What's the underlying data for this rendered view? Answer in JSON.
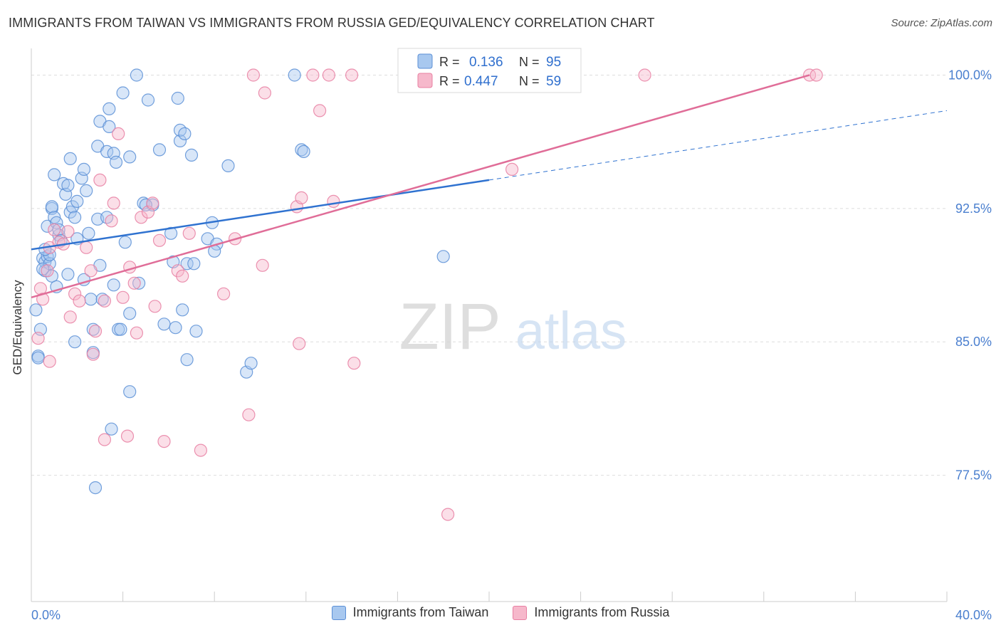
{
  "header": {
    "title": "IMMIGRANTS FROM TAIWAN VS IMMIGRANTS FROM RUSSIA GED/EQUIVALENCY CORRELATION CHART",
    "source": "Source: ZipAtlas.com"
  },
  "watermark": {
    "zip": "ZIP",
    "atlas": "atlas"
  },
  "stats": {
    "r_label": "R =",
    "n_label": "N =",
    "rows": [
      {
        "r": "0.136",
        "n": "95"
      },
      {
        "r": "0.447",
        "n": "59"
      }
    ]
  },
  "colors": {
    "taiwan_fill": "#a8c8ef",
    "taiwan_stroke": "#5b8fd6",
    "taiwan_line": "#2f72d0",
    "russia_fill": "#f6b8cb",
    "russia_stroke": "#e87fa2",
    "russia_line": "#e06d98",
    "axis_label": "#4a7fcf",
    "grid": "#dddddd"
  },
  "chart_data": {
    "type": "scatter",
    "title": "IMMIGRANTS FROM TAIWAN VS IMMIGRANTS FROM RUSSIA GED/EQUIVALENCY CORRELATION CHART",
    "xlabel": "",
    "ylabel": "GED/Equivalency",
    "xlim": [
      0,
      40
    ],
    "ylim": [
      70.4,
      101.5
    ],
    "x_tick_labels": [
      "0.0%",
      "40.0%"
    ],
    "y_ticks": [
      77.5,
      85.0,
      92.5,
      100.0
    ],
    "y_tick_labels": [
      "77.5%",
      "85.0%",
      "92.5%",
      "100.0%"
    ],
    "grid": true,
    "legend_position": "bottom-center",
    "series": [
      {
        "name": "Immigrants from Taiwan",
        "R": 0.136,
        "N": 95,
        "trend": {
          "x": [
            0,
            20
          ],
          "y": [
            90.2,
            94.1
          ]
        },
        "trend_dashed": {
          "x": [
            20,
            40
          ],
          "y": [
            94.1,
            98.0
          ]
        },
        "points": [
          [
            0.2,
            86.8
          ],
          [
            0.3,
            84.2
          ],
          [
            0.3,
            84.1
          ],
          [
            0.4,
            85.7
          ],
          [
            0.5,
            89.7
          ],
          [
            0.6,
            89.5
          ],
          [
            0.6,
            89.0
          ],
          [
            0.7,
            91.5
          ],
          [
            0.7,
            89.8
          ],
          [
            0.8,
            89.4
          ],
          [
            0.9,
            88.7
          ],
          [
            0.9,
            92.5
          ],
          [
            0.9,
            92.6
          ],
          [
            1.0,
            92.0
          ],
          [
            1.0,
            94.4
          ],
          [
            1.1,
            88.1
          ],
          [
            1.1,
            91.7
          ],
          [
            1.2,
            91.0
          ],
          [
            1.2,
            91.3
          ],
          [
            1.3,
            90.7
          ],
          [
            1.4,
            93.9
          ],
          [
            1.5,
            93.3
          ],
          [
            1.6,
            93.8
          ],
          [
            1.7,
            95.3
          ],
          [
            1.7,
            92.3
          ],
          [
            1.8,
            92.6
          ],
          [
            1.9,
            92.0
          ],
          [
            2.0,
            90.8
          ],
          [
            2.0,
            92.9
          ],
          [
            2.2,
            94.2
          ],
          [
            2.3,
            94.7
          ],
          [
            2.4,
            93.5
          ],
          [
            2.5,
            91.1
          ],
          [
            2.6,
            87.4
          ],
          [
            2.7,
            85.7
          ],
          [
            2.7,
            84.4
          ],
          [
            2.9,
            96.0
          ],
          [
            2.9,
            91.9
          ],
          [
            3.0,
            97.4
          ],
          [
            3.0,
            89.3
          ],
          [
            3.1,
            87.4
          ],
          [
            3.3,
            95.7
          ],
          [
            3.3,
            92.0
          ],
          [
            3.4,
            98.1
          ],
          [
            3.4,
            97.1
          ],
          [
            3.5,
            80.1
          ],
          [
            3.6,
            88.2
          ],
          [
            3.6,
            95.6
          ],
          [
            3.7,
            95.1
          ],
          [
            3.8,
            85.7
          ],
          [
            4.0,
            99.0
          ],
          [
            4.1,
            90.6
          ],
          [
            4.3,
            95.4
          ],
          [
            4.3,
            82.2
          ],
          [
            4.3,
            86.6
          ],
          [
            4.7,
            88.3
          ],
          [
            4.9,
            92.8
          ],
          [
            5.1,
            98.6
          ],
          [
            5.3,
            92.7
          ],
          [
            5.6,
            95.8
          ],
          [
            5.8,
            86.0
          ],
          [
            6.1,
            91.1
          ],
          [
            6.3,
            85.8
          ],
          [
            6.4,
            98.7
          ],
          [
            6.5,
            96.3
          ],
          [
            6.5,
            96.9
          ],
          [
            6.6,
            86.8
          ],
          [
            6.7,
            96.7
          ],
          [
            6.8,
            89.4
          ],
          [
            6.8,
            84.0
          ],
          [
            7.0,
            95.5
          ],
          [
            7.1,
            89.4
          ],
          [
            7.2,
            85.6
          ],
          [
            7.9,
            91.7
          ],
          [
            7.7,
            90.8
          ],
          [
            8.1,
            90.5
          ],
          [
            8.6,
            94.9
          ],
          [
            9.4,
            83.3
          ],
          [
            9.6,
            83.8
          ],
          [
            11.8,
            95.8
          ],
          [
            11.9,
            95.7
          ],
          [
            18.0,
            89.8
          ],
          [
            4.6,
            100.0
          ],
          [
            11.5,
            100.0
          ],
          [
            2.8,
            76.8
          ],
          [
            0.5,
            89.1
          ],
          [
            1.9,
            85.0
          ],
          [
            3.9,
            85.7
          ],
          [
            8.0,
            90.1
          ],
          [
            2.3,
            88.5
          ],
          [
            0.8,
            89.9
          ],
          [
            6.2,
            89.5
          ],
          [
            1.6,
            88.8
          ],
          [
            5.0,
            92.7
          ],
          [
            0.6,
            90.2
          ]
        ]
      },
      {
        "name": "Immigrants from Russia",
        "R": 0.447,
        "N": 59,
        "trend": {
          "x": [
            0,
            34
          ],
          "y": [
            87.5,
            100.0
          ]
        },
        "points": [
          [
            0.3,
            85.2
          ],
          [
            0.4,
            88.0
          ],
          [
            0.5,
            87.4
          ],
          [
            0.7,
            89.0
          ],
          [
            0.8,
            90.3
          ],
          [
            0.8,
            83.9
          ],
          [
            1.0,
            91.3
          ],
          [
            1.2,
            90.6
          ],
          [
            1.4,
            90.5
          ],
          [
            1.6,
            91.2
          ],
          [
            1.7,
            86.4
          ],
          [
            1.9,
            87.7
          ],
          [
            2.1,
            87.3
          ],
          [
            2.4,
            90.3
          ],
          [
            2.6,
            89.0
          ],
          [
            2.7,
            84.3
          ],
          [
            2.8,
            85.6
          ],
          [
            3.0,
            94.1
          ],
          [
            3.2,
            87.3
          ],
          [
            3.2,
            79.5
          ],
          [
            3.5,
            91.8
          ],
          [
            3.6,
            92.8
          ],
          [
            3.8,
            96.7
          ],
          [
            4.0,
            87.5
          ],
          [
            4.2,
            79.7
          ],
          [
            4.3,
            89.2
          ],
          [
            4.5,
            88.3
          ],
          [
            4.6,
            85.5
          ],
          [
            4.8,
            92.0
          ],
          [
            5.1,
            92.3
          ],
          [
            5.3,
            92.8
          ],
          [
            5.4,
            87.0
          ],
          [
            5.6,
            90.7
          ],
          [
            5.8,
            79.4
          ],
          [
            6.4,
            89.0
          ],
          [
            6.6,
            88.7
          ],
          [
            6.9,
            91.1
          ],
          [
            7.4,
            78.9
          ],
          [
            8.4,
            87.7
          ],
          [
            8.9,
            90.8
          ],
          [
            9.5,
            80.9
          ],
          [
            10.1,
            89.3
          ],
          [
            10.2,
            99.0
          ],
          [
            11.6,
            92.6
          ],
          [
            11.7,
            84.9
          ],
          [
            11.8,
            93.1
          ],
          [
            12.3,
            100.0
          ],
          [
            12.6,
            98.0
          ],
          [
            13.0,
            100.0
          ],
          [
            13.2,
            92.9
          ],
          [
            14.1,
            83.8
          ],
          [
            18.0,
            100.0
          ],
          [
            18.2,
            75.3
          ],
          [
            21.0,
            94.7
          ],
          [
            26.8,
            100.0
          ],
          [
            34.0,
            100.0
          ],
          [
            34.3,
            100.0
          ],
          [
            9.7,
            100.0
          ],
          [
            14.0,
            100.0
          ]
        ]
      }
    ]
  },
  "legend": {
    "items": [
      {
        "label": "Immigrants from Taiwan"
      },
      {
        "label": "Immigrants from Russia"
      }
    ]
  }
}
